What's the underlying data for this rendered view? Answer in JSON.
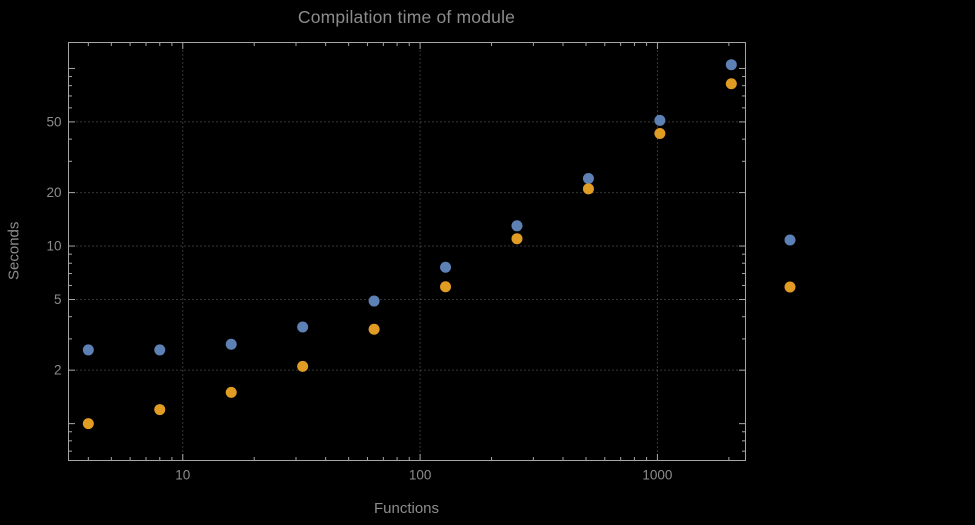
{
  "chart_data": {
    "type": "scatter",
    "title": "Compilation time of module",
    "xlabel": "Functions",
    "ylabel": "Seconds",
    "x_scale": "log",
    "y_scale": "log",
    "x": [
      4,
      8,
      16,
      32,
      64,
      128,
      256,
      512,
      1024,
      2048
    ],
    "series": [
      {
        "name": "series-1",
        "color": "#5e81b5",
        "values": [
          2.6,
          2.6,
          2.8,
          3.5,
          4.9,
          7.6,
          13,
          24,
          51,
          105
        ]
      },
      {
        "name": "series-2",
        "color": "#e19c24",
        "values": [
          1.0,
          1.2,
          1.5,
          2.1,
          3.4,
          5.9,
          11,
          21,
          43,
          82
        ]
      }
    ],
    "x_ticks": [
      10,
      100,
      1000
    ],
    "x_tick_labels": [
      "10",
      "100",
      "1000"
    ],
    "y_ticks": [
      2,
      5,
      10,
      20,
      50
    ],
    "y_tick_labels": [
      "2",
      "5",
      "10",
      "20",
      "50"
    ],
    "x_range": [
      3.3,
      2350
    ],
    "y_range": [
      0.62,
      140
    ],
    "grid": "dotted",
    "legend": {
      "position": "right-outside",
      "labels": [
        "",
        ""
      ]
    },
    "style": {
      "background": "#000000",
      "text_color": "#8c8c8c",
      "frame_color": "#a6a6a6",
      "grid_color": "#6b6b6b",
      "point_radius": 5.5
    }
  }
}
